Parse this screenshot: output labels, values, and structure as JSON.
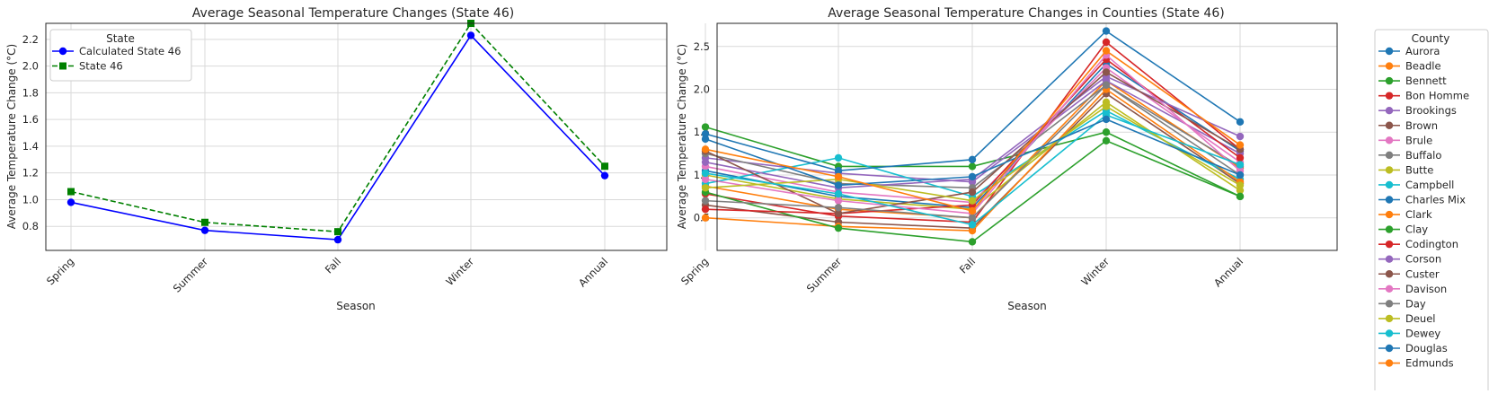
{
  "chart_data": [
    {
      "type": "line",
      "title": "Average Seasonal Temperature Changes (State 46)",
      "xlabel": "Season",
      "ylabel": "Average Temperature Change (°C)",
      "categories": [
        "Spring",
        "Summer",
        "Fall",
        "Winter",
        "Annual"
      ],
      "ylim": [
        0.62,
        2.32
      ],
      "yticks": [
        "0.8",
        "1.0",
        "1.2",
        "1.4",
        "1.6",
        "1.8",
        "2.0",
        "2.2"
      ],
      "grid": true,
      "legend": {
        "title": "State",
        "position": "top-left"
      },
      "series": [
        {
          "name": "Calculated State 46",
          "color": "#0000ff",
          "marker": "circle",
          "dash": "solid",
          "values": [
            0.98,
            0.77,
            0.7,
            2.23,
            1.18
          ]
        },
        {
          "name": "State 46",
          "color": "#008000",
          "marker": "square",
          "dash": "dashed",
          "values": [
            1.06,
            0.83,
            0.76,
            2.32,
            1.25
          ]
        }
      ]
    },
    {
      "type": "line",
      "title": "Average Seasonal Temperature Changes in Counties (State 46)",
      "xlabel": "Season",
      "ylabel": "Average Temperature Change (°C)",
      "categories": [
        "Spring",
        "Summer",
        "Fall",
        "Winter",
        "Annual"
      ],
      "ylim": [
        0.12,
        2.77
      ],
      "yticks": [
        "0.5",
        "1.0",
        "1.5",
        "2.0",
        "2.5"
      ],
      "grid": true,
      "legend": {
        "title": "County",
        "position": "outside-right"
      },
      "series": [
        {
          "name": "Aurora",
          "color": "#1f77b4",
          "values": [
            1.05,
            0.75,
            0.62,
            2.3,
            1.28
          ]
        },
        {
          "name": "Beadle",
          "color": "#ff7f0e",
          "values": [
            0.87,
            0.6,
            0.5,
            2.1,
            1.08
          ]
        },
        {
          "name": "Bennett",
          "color": "#2ca02c",
          "values": [
            1.56,
            1.1,
            1.1,
            1.5,
            0.75
          ]
        },
        {
          "name": "Bon Homme",
          "color": "#d62728",
          "values": [
            0.78,
            0.52,
            0.45,
            2.55,
            1.3
          ]
        },
        {
          "name": "Brookings",
          "color": "#9467bd",
          "values": [
            1.2,
            1.02,
            0.92,
            2.1,
            1.25
          ]
        },
        {
          "name": "Brown",
          "color": "#8c564b",
          "values": [
            0.65,
            0.45,
            0.38,
            1.95,
            0.9
          ]
        },
        {
          "name": "Brule",
          "color": "#e377c2",
          "values": [
            1.1,
            0.8,
            0.68,
            2.25,
            1.15
          ]
        },
        {
          "name": "Buffalo",
          "color": "#7f7f7f",
          "values": [
            1.25,
            0.9,
            0.85,
            2.05,
            1.1
          ]
        },
        {
          "name": "Butte",
          "color": "#bcbd22",
          "values": [
            1.0,
            0.72,
            0.6,
            1.85,
            0.82
          ]
        },
        {
          "name": "Campbell",
          "color": "#17becf",
          "values": [
            0.9,
            1.2,
            0.75,
            1.75,
            0.95
          ]
        },
        {
          "name": "Charles Mix",
          "color": "#1f77b4",
          "values": [
            1.48,
            1.05,
            1.18,
            2.68,
            1.62
          ]
        },
        {
          "name": "Clark",
          "color": "#ff7f0e",
          "values": [
            0.5,
            0.4,
            0.35,
            2.0,
            0.92
          ]
        },
        {
          "name": "Clay",
          "color": "#2ca02c",
          "values": [
            0.8,
            0.38,
            0.22,
            1.4,
            0.75
          ]
        },
        {
          "name": "Codington",
          "color": "#d62728",
          "values": [
            0.6,
            0.55,
            0.65,
            2.35,
            1.2
          ]
        },
        {
          "name": "Corson",
          "color": "#9467bd",
          "values": [
            1.15,
            0.85,
            0.95,
            2.15,
            1.45
          ]
        },
        {
          "name": "Custer",
          "color": "#8c564b",
          "values": [
            1.28,
            0.55,
            0.8,
            2.2,
            1.3
          ]
        },
        {
          "name": "Davison",
          "color": "#e377c2",
          "values": [
            0.95,
            0.7,
            0.55,
            2.4,
            1.05
          ]
        },
        {
          "name": "Day",
          "color": "#7f7f7f",
          "values": [
            0.7,
            0.62,
            0.5,
            2.05,
            1.0
          ]
        },
        {
          "name": "Deuel",
          "color": "#bcbd22",
          "values": [
            0.85,
            0.95,
            0.7,
            1.8,
            0.88
          ]
        },
        {
          "name": "Dewey",
          "color": "#17becf",
          "values": [
            1.02,
            0.78,
            0.42,
            1.7,
            1.12
          ]
        },
        {
          "name": "Douglas",
          "color": "#1f77b4",
          "values": [
            1.42,
            0.88,
            0.98,
            1.65,
            1.0
          ]
        },
        {
          "name": "Edmunds",
          "color": "#ff7f0e",
          "values": [
            1.3,
            0.98,
            0.58,
            2.45,
            1.35
          ]
        }
      ]
    }
  ]
}
